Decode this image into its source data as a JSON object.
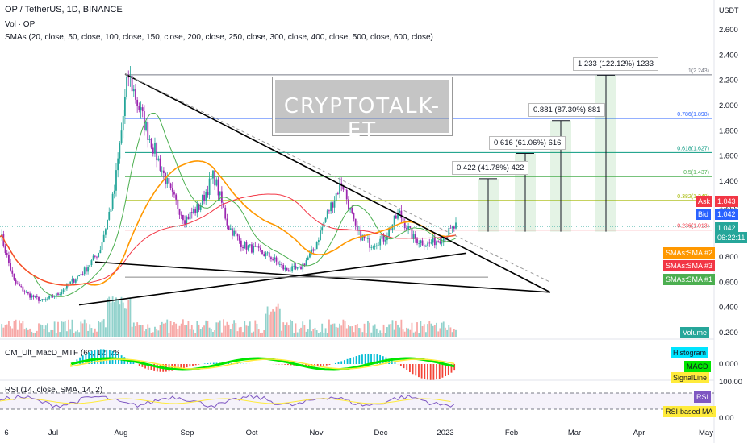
{
  "header": {
    "symbol": "OP / TetherUS, 1D, BINANCE",
    "vol": "Vol · OP",
    "smas": "SMAs (20, close, 50, close, 100, close, 150, close, 200, close, 250, close, 300, close, 400, close, 500, close, 600, close)"
  },
  "watermark": "CRYPTOTALK-ET",
  "currency": "USDT",
  "price_axis": [
    "2.600",
    "2.400",
    "2.200",
    "2.000",
    "1.800",
    "1.600",
    "1.400",
    "1.200",
    "1.000",
    "0.800",
    "0.600",
    "0.400",
    "0.200"
  ],
  "time_axis": [
    "6",
    "Jul",
    "Aug",
    "Sep",
    "Oct",
    "Nov",
    "Dec",
    "2023",
    "Feb",
    "Mar",
    "Apr",
    "May"
  ],
  "fib_levels": [
    {
      "label": "1(2.243)",
      "value": 2.243,
      "color": "#787b86"
    },
    {
      "label": "0.786(1.898)",
      "value": 1.898,
      "color": "#2962ff"
    },
    {
      "label": "0.618(1.627)",
      "value": 1.627,
      "color": "#089981"
    },
    {
      "label": "0.5(1.437)",
      "value": 1.437,
      "color": "#4caf50"
    },
    {
      "label": "0.382(1.248)",
      "value": 1.248,
      "color": "#a5b800"
    },
    {
      "label": "0.236(1.013)",
      "value": 1.013,
      "color": "#f23645"
    }
  ],
  "targets": [
    {
      "label": "0.422 (41.78%) 422",
      "value": 1.42
    },
    {
      "label": "0.616 (61.06%) 616",
      "value": 1.62
    },
    {
      "label": "0.881 (87.30%) 881",
      "value": 1.88
    },
    {
      "label": "1.233 (122.12%) 1233",
      "value": 2.24
    }
  ],
  "price_tags": {
    "ask_label": "Ask",
    "ask": "1.043",
    "ask_color": "#f23645",
    "bid_label": "Bid",
    "bid": "1.042",
    "bid_color": "#2962ff",
    "last": "1.042",
    "countdown": "06:22:11",
    "last_color": "#26a69a",
    "sma2": "SMAs:SMA #2",
    "sma2_color": "#ff9800",
    "sma3": "SMAs:SMA #3",
    "sma3_color": "#f23645",
    "sma1": "SMAs:SMA #1",
    "sma1_color": "#4caf50",
    "volume": "Volume",
    "volume_color": "#26a69a"
  },
  "macd": {
    "title": "CM_Ult_MacD_MTF (60, 12, 26",
    "histogram_tag": "Histogram",
    "histogram_color": "#00e5ff",
    "macd_tag": "MACD",
    "macd_color": "#00e600",
    "signal_tag": "SignalLine",
    "signal_color": "#ffeb3b",
    "axis_value": "0.000"
  },
  "rsi": {
    "title": "RSI (14, close, SMA, 14, 2)",
    "axis_top": "100.00",
    "axis_bottom": "0.00",
    "rsi_tag": "RSI",
    "rsi_color": "#7e57c2",
    "ma_tag": "RSI-based MA",
    "ma_color": "#ffeb3b"
  },
  "chart_data": {
    "type": "candlestick",
    "symbol": "OP / TetherUS",
    "interval": "1D",
    "ylim": [
      0.1,
      2.7
    ],
    "x": [
      "Jun",
      "Jul",
      "Aug",
      "Sep",
      "Oct",
      "Nov",
      "Dec",
      "Jan",
      "Feb",
      "Mar",
      "Apr",
      "May"
    ],
    "close_path": [
      1.0,
      0.6,
      0.5,
      0.45,
      0.5,
      0.6,
      0.7,
      0.85,
      1.3,
      2.25,
      1.9,
      1.6,
      1.3,
      1.1,
      1.2,
      1.45,
      1.05,
      0.9,
      0.85,
      0.8,
      0.7,
      0.7,
      0.85,
      1.15,
      1.4,
      1.0,
      0.9,
      0.95,
      1.15,
      0.95,
      0.9,
      0.95,
      1.042
    ],
    "triangle_upper": [
      [
        0.64,
        2.25
      ],
      [
        0.88,
        1.42
      ],
      [
        1.45,
        0.5
      ]
    ],
    "triangle_lower": [
      [
        0.5,
        0.4
      ],
      [
        1.45,
        0.5
      ]
    ],
    "support_line": [
      [
        0.55,
        0.75
      ],
      [
        1.4,
        0.83
      ]
    ],
    "horizontal_support": 0.64,
    "last_price": 1.042
  }
}
